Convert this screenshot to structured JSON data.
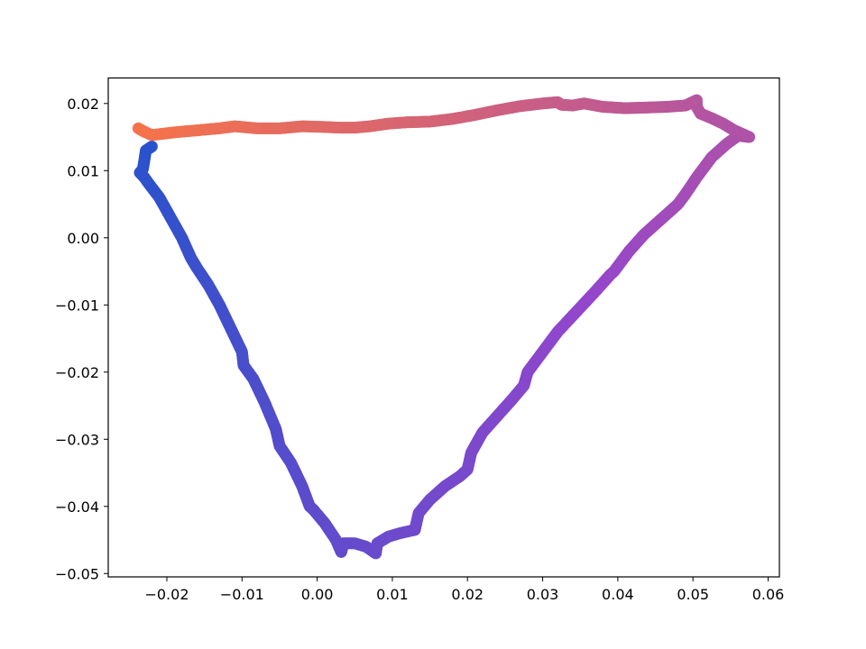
{
  "chart_data": {
    "type": "scatter",
    "title": "",
    "xlabel": "",
    "ylabel": "",
    "xlim": [
      -0.0278,
      0.0615
    ],
    "ylim": [
      -0.0505,
      0.0238
    ],
    "grid": false,
    "legend": "none",
    "x_ticks": [
      {
        "value": -0.02,
        "label": "−0.02"
      },
      {
        "value": -0.01,
        "label": "−0.01"
      },
      {
        "value": 0.0,
        "label": "0.00"
      },
      {
        "value": 0.01,
        "label": "0.01"
      },
      {
        "value": 0.02,
        "label": "0.02"
      },
      {
        "value": 0.03,
        "label": "0.03"
      },
      {
        "value": 0.04,
        "label": "0.04"
      },
      {
        "value": 0.05,
        "label": "0.05"
      },
      {
        "value": 0.06,
        "label": "0.06"
      }
    ],
    "y_ticks": [
      {
        "value": 0.02,
        "label": "0.02"
      },
      {
        "value": 0.01,
        "label": "0.01"
      },
      {
        "value": 0.0,
        "label": "0.00"
      },
      {
        "value": -0.01,
        "label": "−0.01"
      },
      {
        "value": -0.02,
        "label": "−0.02"
      },
      {
        "value": -0.03,
        "label": "−0.03"
      },
      {
        "value": -0.04,
        "label": "−0.04"
      },
      {
        "value": -0.05,
        "label": "−0.05"
      }
    ],
    "color_start": "#2952cc",
    "color_mid": "#9446cc",
    "color_end": "#f5734a",
    "series": [
      {
        "points": [
          [
            -0.022,
            0.0136
          ],
          [
            -0.0228,
            0.013
          ],
          [
            -0.023,
            0.0115
          ],
          [
            -0.0232,
            0.0102
          ],
          [
            -0.0236,
            0.0097
          ],
          [
            -0.023,
            0.009
          ],
          [
            -0.0225,
            0.0082
          ],
          [
            -0.021,
            0.006
          ],
          [
            -0.0195,
            0.003
          ],
          [
            -0.018,
            0.0
          ],
          [
            -0.0168,
            -0.003
          ],
          [
            -0.016,
            -0.0045
          ],
          [
            -0.0145,
            -0.007
          ],
          [
            -0.013,
            -0.01
          ],
          [
            -0.0115,
            -0.0135
          ],
          [
            -0.01,
            -0.017
          ],
          [
            -0.0098,
            -0.019
          ],
          [
            -0.0085,
            -0.021
          ],
          [
            -0.007,
            -0.0245
          ],
          [
            -0.0055,
            -0.0285
          ],
          [
            -0.005,
            -0.031
          ],
          [
            -0.0035,
            -0.0335
          ],
          [
            -0.002,
            -0.037
          ],
          [
            -0.001,
            -0.04
          ],
          [
            -0.0005,
            -0.0405
          ],
          [
            0.001,
            -0.0425
          ],
          [
            0.0025,
            -0.045
          ],
          [
            0.0032,
            -0.0468
          ],
          [
            0.0035,
            -0.0455
          ],
          [
            0.005,
            -0.0455
          ],
          [
            0.0065,
            -0.046
          ],
          [
            0.0078,
            -0.047
          ],
          [
            0.008,
            -0.0455
          ],
          [
            0.0095,
            -0.0445
          ],
          [
            0.011,
            -0.044
          ],
          [
            0.013,
            -0.0435
          ],
          [
            0.0135,
            -0.041
          ],
          [
            0.015,
            -0.039
          ],
          [
            0.017,
            -0.037
          ],
          [
            0.019,
            -0.0355
          ],
          [
            0.02,
            -0.0345
          ],
          [
            0.0205,
            -0.032
          ],
          [
            0.022,
            -0.029
          ],
          [
            0.024,
            -0.0265
          ],
          [
            0.026,
            -0.024
          ],
          [
            0.0275,
            -0.022
          ],
          [
            0.028,
            -0.02
          ],
          [
            0.03,
            -0.017
          ],
          [
            0.032,
            -0.014
          ],
          [
            0.0345,
            -0.011
          ],
          [
            0.037,
            -0.008
          ],
          [
            0.039,
            -0.0055
          ],
          [
            0.0395,
            -0.005
          ],
          [
            0.0415,
            -0.002
          ],
          [
            0.0435,
            0.0005
          ],
          [
            0.0455,
            0.0025
          ],
          [
            0.047,
            0.004
          ],
          [
            0.048,
            0.005
          ],
          [
            0.049,
            0.0065
          ],
          [
            0.0505,
            0.009
          ],
          [
            0.0525,
            0.012
          ],
          [
            0.0545,
            0.014
          ],
          [
            0.056,
            0.0152
          ],
          [
            0.0575,
            0.015
          ],
          [
            0.0565,
            0.0155
          ],
          [
            0.0555,
            0.016
          ],
          [
            0.054,
            0.017
          ],
          [
            0.0525,
            0.0178
          ],
          [
            0.051,
            0.0185
          ],
          [
            0.0505,
            0.0195
          ],
          [
            0.0505,
            0.0205
          ],
          [
            0.049,
            0.0197
          ],
          [
            0.0465,
            0.0195
          ],
          [
            0.044,
            0.0194
          ],
          [
            0.041,
            0.0193
          ],
          [
            0.038,
            0.0195
          ],
          [
            0.0355,
            0.02
          ],
          [
            0.034,
            0.0197
          ],
          [
            0.0325,
            0.0198
          ],
          [
            0.032,
            0.0202
          ],
          [
            0.03,
            0.02
          ],
          [
            0.027,
            0.0196
          ],
          [
            0.024,
            0.019
          ],
          [
            0.021,
            0.0183
          ],
          [
            0.018,
            0.0177
          ],
          [
            0.015,
            0.0173
          ],
          [
            0.012,
            0.0172
          ],
          [
            0.0095,
            0.017
          ],
          [
            0.007,
            0.0166
          ],
          [
            0.005,
            0.0164
          ],
          [
            0.003,
            0.0164
          ],
          [
            0.001,
            0.0165
          ],
          [
            -0.002,
            0.0166
          ],
          [
            -0.005,
            0.0163
          ],
          [
            -0.008,
            0.0163
          ],
          [
            -0.011,
            0.0166
          ],
          [
            -0.013,
            0.0163
          ],
          [
            -0.016,
            0.016
          ],
          [
            -0.019,
            0.0157
          ],
          [
            -0.022,
            0.0153
          ],
          [
            -0.023,
            0.0158
          ],
          [
            -0.0238,
            0.0163
          ]
        ]
      }
    ]
  }
}
